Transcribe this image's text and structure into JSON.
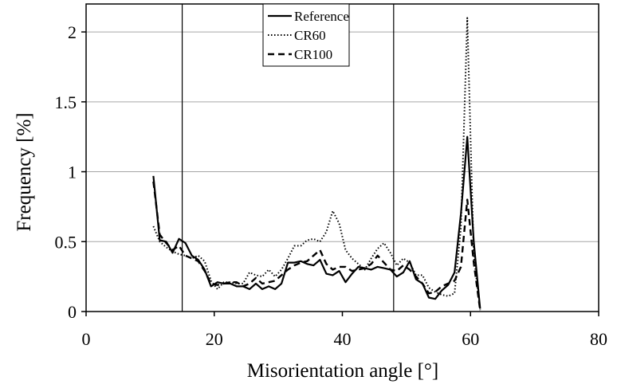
{
  "chart_data": {
    "type": "line",
    "xlabel": "Misorientation angle [°]",
    "ylabel": "Frequency [%]",
    "xlim": [
      0,
      80
    ],
    "ylim": [
      0,
      2.2
    ],
    "xticks": [
      "0",
      "20",
      "40",
      "60",
      "80"
    ],
    "yticks": [
      "0",
      "0.5",
      "1",
      "1.5",
      "2"
    ],
    "ytick_values": [
      0,
      0.5,
      1,
      1.5,
      2
    ],
    "xtick_values": [
      0,
      20,
      40,
      60,
      80
    ],
    "grid": "horizontal",
    "vertical_markers": [
      15,
      48
    ],
    "legend_position": "top-center",
    "series": [
      {
        "name": "Reference",
        "style": "solid",
        "x": [
          10.5,
          11.5,
          12.5,
          13.5,
          14.5,
          15.5,
          16.5,
          17.5,
          18.5,
          19.5,
          20.5,
          21.5,
          22.5,
          23.5,
          24.5,
          25.5,
          26.5,
          27.5,
          28.5,
          29.5,
          30.5,
          31.5,
          32.5,
          33.5,
          34.5,
          35.5,
          36.5,
          37.5,
          38.5,
          39.5,
          40.5,
          41.5,
          42.5,
          43.5,
          44.5,
          45.5,
          46.5,
          47.5,
          48.5,
          49.5,
          50.5,
          51.5,
          52.5,
          53.5,
          54.5,
          55.5,
          56.5,
          57.5,
          58.5,
          59.5,
          60.5,
          61.5
        ],
        "y": [
          0.97,
          0.51,
          0.5,
          0.42,
          0.52,
          0.49,
          0.4,
          0.37,
          0.3,
          0.18,
          0.21,
          0.2,
          0.2,
          0.18,
          0.18,
          0.16,
          0.2,
          0.16,
          0.18,
          0.16,
          0.2,
          0.35,
          0.35,
          0.36,
          0.34,
          0.33,
          0.37,
          0.27,
          0.26,
          0.29,
          0.21,
          0.27,
          0.32,
          0.31,
          0.3,
          0.32,
          0.31,
          0.3,
          0.25,
          0.28,
          0.36,
          0.23,
          0.2,
          0.1,
          0.09,
          0.15,
          0.19,
          0.28,
          0.7,
          1.25,
          0.5,
          0.02
        ]
      },
      {
        "name": "CR60",
        "style": "dotted",
        "x": [
          10.5,
          11.5,
          12.5,
          13.5,
          14.5,
          15.5,
          16.5,
          17.5,
          18.5,
          19.5,
          20.5,
          21.5,
          22.5,
          23.5,
          24.5,
          25.5,
          26.5,
          27.5,
          28.5,
          29.5,
          30.5,
          31.5,
          32.5,
          33.5,
          34.5,
          35.5,
          36.5,
          37.5,
          38.5,
          39.5,
          40.5,
          41.5,
          42.5,
          43.5,
          44.5,
          45.5,
          46.5,
          47.5,
          48.5,
          49.5,
          50.5,
          51.5,
          52.5,
          53.5,
          54.5,
          55.5,
          56.5,
          57.5,
          58.5,
          59.5,
          60.5,
          61.5
        ],
        "y": [
          0.61,
          0.5,
          0.46,
          0.43,
          0.41,
          0.4,
          0.38,
          0.4,
          0.36,
          0.22,
          0.16,
          0.21,
          0.21,
          0.2,
          0.2,
          0.28,
          0.26,
          0.25,
          0.3,
          0.25,
          0.3,
          0.38,
          0.47,
          0.47,
          0.51,
          0.52,
          0.5,
          0.57,
          0.72,
          0.63,
          0.44,
          0.38,
          0.34,
          0.3,
          0.38,
          0.45,
          0.49,
          0.42,
          0.33,
          0.38,
          0.35,
          0.26,
          0.26,
          0.17,
          0.14,
          0.12,
          0.11,
          0.13,
          0.6,
          2.1,
          0.4,
          0.01
        ]
      },
      {
        "name": "CR100",
        "style": "dashed",
        "x": [
          10.5,
          11.5,
          12.5,
          13.5,
          14.5,
          15.5,
          16.5,
          17.5,
          18.5,
          19.5,
          20.5,
          21.5,
          22.5,
          23.5,
          24.5,
          25.5,
          26.5,
          27.5,
          28.5,
          29.5,
          30.5,
          31.5,
          32.5,
          33.5,
          34.5,
          35.5,
          36.5,
          37.5,
          38.5,
          39.5,
          40.5,
          41.5,
          42.5,
          43.5,
          44.5,
          45.5,
          46.5,
          47.5,
          48.5,
          49.5,
          50.5,
          51.5,
          52.5,
          53.5,
          54.5,
          55.5,
          56.5,
          57.5,
          58.5,
          59.5,
          60.5,
          61.5
        ],
        "y": [
          0.93,
          0.55,
          0.49,
          0.44,
          0.47,
          0.4,
          0.38,
          0.36,
          0.29,
          0.2,
          0.19,
          0.2,
          0.21,
          0.21,
          0.18,
          0.2,
          0.24,
          0.2,
          0.21,
          0.22,
          0.26,
          0.3,
          0.33,
          0.35,
          0.36,
          0.4,
          0.44,
          0.34,
          0.3,
          0.32,
          0.32,
          0.29,
          0.3,
          0.31,
          0.34,
          0.4,
          0.35,
          0.3,
          0.29,
          0.33,
          0.3,
          0.25,
          0.2,
          0.13,
          0.14,
          0.18,
          0.2,
          0.22,
          0.32,
          0.8,
          0.35,
          0.01
        ]
      }
    ]
  }
}
